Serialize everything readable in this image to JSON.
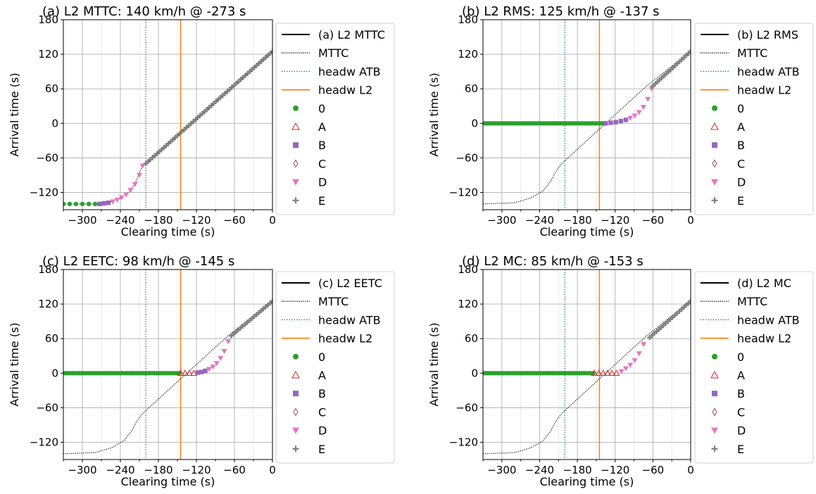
{
  "colors": {
    "line_l2": "#000000",
    "mttc": "#000000",
    "headw_atb": "#1f77b4",
    "headw_l2": "#ff7f0e",
    "cat_0": "#2ca02c",
    "cat_A": "#d62728",
    "cat_B": "#9467bd",
    "cat_C": "#8c564b",
    "cat_D": "#e377c2",
    "cat_E": "#7f7f7f",
    "grid": "#b0b0b0"
  },
  "chart_data": [
    {
      "type": "line",
      "title": "(a) L2 MTTC: 140 km/h @ -273 s",
      "xlabel": "Clearing time (s)",
      "ylabel": "Arrival time (s)",
      "xlim": [
        -330,
        0
      ],
      "ylim": [
        -150,
        180
      ],
      "xticks": [
        -300,
        -240,
        -180,
        -120,
        -60,
        0
      ],
      "yticks": [
        -120,
        -60,
        0,
        60,
        120,
        180
      ],
      "grid": true,
      "legend_position": "outside-right",
      "legend": [
        "(a) L2 MTTC",
        "MTTC",
        "headw ATB",
        "headw L2",
        "0",
        "A",
        "B",
        "C",
        "D",
        "E"
      ],
      "headw_atb_x": -200,
      "headw_l2_x": -145,
      "mttc_curve": [
        [
          -330,
          -140
        ],
        [
          -273,
          -140
        ],
        [
          -255,
          -136
        ],
        [
          -240,
          -130
        ],
        [
          -225,
          -118
        ],
        [
          -215,
          -100
        ],
        [
          -205,
          -72
        ],
        [
          -200,
          -70
        ],
        [
          0,
          125
        ]
      ],
      "series": [
        {
          "name": "0",
          "marker": "circle",
          "x": [
            -330,
            -320,
            -310,
            -300,
            -290,
            -280
          ],
          "y": [
            -140,
            -140,
            -140,
            -140,
            -140,
            -140
          ]
        },
        {
          "name": "B",
          "marker": "square",
          "x": [
            -273,
            -266,
            -259
          ],
          "y": [
            -140,
            -139,
            -138
          ]
        },
        {
          "name": "D",
          "marker": "triangle-down",
          "x": [
            -252,
            -245,
            -238,
            -231,
            -224,
            -217,
            -210,
            -205
          ],
          "y": [
            -136,
            -133,
            -129,
            -124,
            -116,
            -106,
            -90,
            -74
          ]
        },
        {
          "name": "E",
          "marker": "plus",
          "x": [
            -200,
            0
          ],
          "y": [
            -70,
            125
          ],
          "dense": true
        }
      ]
    },
    {
      "type": "line",
      "title": "(b) L2 RMS: 125 km/h @ -137 s",
      "xlabel": "Clearing time (s)",
      "ylabel": "Arrival time (s)",
      "xlim": [
        -330,
        0
      ],
      "ylim": [
        -150,
        180
      ],
      "xticks": [
        -300,
        -240,
        -180,
        -120,
        -60,
        0
      ],
      "yticks": [
        -120,
        -60,
        0,
        60,
        120,
        180
      ],
      "grid": true,
      "legend_position": "outside-right",
      "legend": [
        "(b) L2 RMS",
        "MTTC",
        "headw ATB",
        "headw L2",
        "0",
        "A",
        "B",
        "C",
        "D",
        "E"
      ],
      "headw_atb_x": -200,
      "headw_l2_x": -145,
      "mttc_curve": [
        [
          -330,
          -140
        ],
        [
          -280,
          -138
        ],
        [
          -255,
          -130
        ],
        [
          -235,
          -118
        ],
        [
          -222,
          -100
        ],
        [
          -215,
          -85
        ],
        [
          -205,
          -70
        ],
        [
          -190,
          -55
        ],
        [
          -160,
          -25
        ],
        [
          -130,
          5
        ],
        [
          -100,
          35
        ],
        [
          -70,
          65
        ],
        [
          0,
          125
        ]
      ],
      "series": [
        {
          "name": "0",
          "marker": "circle",
          "x": [
            -330,
            -137
          ],
          "y": [
            0,
            0
          ],
          "dense": true
        },
        {
          "name": "B",
          "marker": "square",
          "x": [
            -135,
            -127,
            -119,
            -111,
            -103
          ],
          "y": [
            0,
            1,
            2,
            4,
            6
          ]
        },
        {
          "name": "D",
          "marker": "triangle-down",
          "x": [
            -96,
            -89,
            -82,
            -75,
            -68,
            -62
          ],
          "y": [
            9,
            13,
            19,
            28,
            42,
            60
          ]
        },
        {
          "name": "E",
          "marker": "plus",
          "x": [
            -60,
            0
          ],
          "y": [
            65,
            125
          ],
          "dense": true
        }
      ]
    },
    {
      "type": "line",
      "title": "(c) L2 EETC: 98 km/h @ -145 s",
      "xlabel": "Clearing time (s)",
      "ylabel": "Arrival time (s)",
      "xlim": [
        -330,
        0
      ],
      "ylim": [
        -150,
        180
      ],
      "xticks": [
        -300,
        -240,
        -180,
        -120,
        -60,
        0
      ],
      "yticks": [
        -120,
        -60,
        0,
        60,
        120,
        180
      ],
      "grid": true,
      "legend_position": "outside-right",
      "legend": [
        "(c) L2 EETC",
        "MTTC",
        "headw ATB",
        "headw L2",
        "0",
        "A",
        "B",
        "C",
        "D",
        "E"
      ],
      "headw_atb_x": -200,
      "headw_l2_x": -145,
      "mttc_curve": [
        [
          -330,
          -140
        ],
        [
          -280,
          -138
        ],
        [
          -255,
          -130
        ],
        [
          -235,
          -118
        ],
        [
          -222,
          -100
        ],
        [
          -215,
          -85
        ],
        [
          -205,
          -70
        ],
        [
          -190,
          -55
        ],
        [
          -160,
          -25
        ],
        [
          -130,
          5
        ],
        [
          -100,
          35
        ],
        [
          -70,
          65
        ],
        [
          0,
          125
        ]
      ],
      "series": [
        {
          "name": "0",
          "marker": "circle",
          "x": [
            -330,
            -147
          ],
          "y": [
            0,
            0
          ],
          "dense": true
        },
        {
          "name": "A",
          "marker": "triangle-up",
          "x": [
            -145,
            -138,
            -131,
            -124
          ],
          "y": [
            0,
            0,
            0,
            0
          ]
        },
        {
          "name": "B",
          "marker": "square",
          "x": [
            -118,
            -112,
            -106
          ],
          "y": [
            1,
            2,
            4
          ]
        },
        {
          "name": "D",
          "marker": "triangle-down",
          "x": [
            -100,
            -94,
            -88,
            -82,
            -76,
            -70
          ],
          "y": [
            7,
            11,
            17,
            26,
            38,
            55
          ]
        },
        {
          "name": "E",
          "marker": "plus",
          "x": [
            -65,
            0
          ],
          "y": [
            65,
            125
          ],
          "dense": true
        }
      ]
    },
    {
      "type": "line",
      "title": "(d) L2 MC: 85 km/h @ -153 s",
      "xlabel": "Clearing time (s)",
      "ylabel": "Arrival time (s)",
      "xlim": [
        -330,
        0
      ],
      "ylim": [
        -150,
        180
      ],
      "xticks": [
        -300,
        -240,
        -180,
        -120,
        -60,
        0
      ],
      "yticks": [
        -120,
        -60,
        0,
        60,
        120,
        180
      ],
      "grid": true,
      "legend_position": "outside-right",
      "legend": [
        "(d) L2 MC",
        "MTTC",
        "headw ATB",
        "headw L2",
        "0",
        "A",
        "B",
        "C",
        "D",
        "E"
      ],
      "headw_atb_x": -200,
      "headw_l2_x": -145,
      "mttc_curve": [
        [
          -330,
          -140
        ],
        [
          -280,
          -138
        ],
        [
          -255,
          -130
        ],
        [
          -235,
          -118
        ],
        [
          -222,
          -100
        ],
        [
          -215,
          -85
        ],
        [
          -205,
          -70
        ],
        [
          -190,
          -55
        ],
        [
          -160,
          -25
        ],
        [
          -130,
          5
        ],
        [
          -100,
          35
        ],
        [
          -70,
          65
        ],
        [
          0,
          125
        ]
      ],
      "series": [
        {
          "name": "0",
          "marker": "circle",
          "x": [
            -330,
            -155
          ],
          "y": [
            0,
            0
          ],
          "dense": true
        },
        {
          "name": "A",
          "marker": "triangle-up",
          "x": [
            -153,
            -146,
            -139,
            -132,
            -125,
            -118
          ],
          "y": [
            0,
            0,
            0,
            0,
            0,
            0
          ]
        },
        {
          "name": "D",
          "marker": "triangle-down",
          "x": [
            -110,
            -103,
            -96,
            -89,
            -82,
            -75
          ],
          "y": [
            3,
            8,
            14,
            22,
            34,
            50
          ]
        },
        {
          "name": "E",
          "marker": "plus",
          "x": [
            -65,
            0
          ],
          "y": [
            62,
            125
          ],
          "dense": true
        }
      ]
    }
  ]
}
